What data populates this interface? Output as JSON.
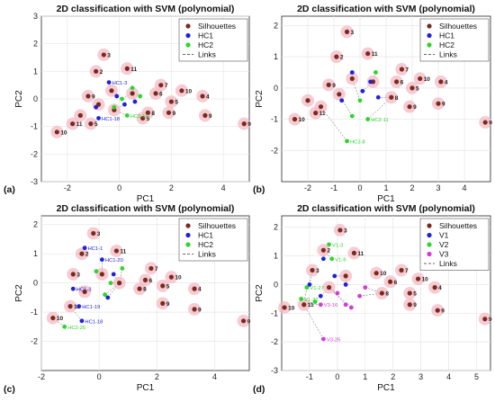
{
  "panel_labels": [
    "(a)",
    "(b)",
    "(c)",
    "(d)"
  ],
  "colors": {
    "silhouettes": "#7b2a1a",
    "halo": "#f3b9c4",
    "hc1": "#1f22d8",
    "hc2": "#2fd42f",
    "v1": "#2fd42f",
    "v2": "#1f22d8",
    "v3": "#d23bd6",
    "links": "#333333"
  },
  "chart_data": [
    {
      "type": "scatter",
      "title": "2D classification with SVM (polynomial)",
      "xlabel": "PC1",
      "ylabel": "PC2",
      "xlim": [
        -3,
        5
      ],
      "ylim": [
        -3,
        3
      ],
      "xticks": [
        -2,
        0,
        2,
        4
      ],
      "yticks": [
        -3,
        -2,
        -1,
        0,
        1,
        2,
        3
      ],
      "grid": true,
      "legend_position": "top-right",
      "legend": [
        "Silhouettes",
        "HC1",
        "HC2",
        "Links"
      ],
      "series": [
        {
          "name": "Silhouettes",
          "role": "sil",
          "points": [
            {
              "x": -0.6,
              "y": 1.6,
              "label": "3"
            },
            {
              "x": -0.9,
              "y": 1.0,
              "label": "2"
            },
            {
              "x": 0.3,
              "y": 1.1,
              "label": "11"
            },
            {
              "x": -2.4,
              "y": -1.2,
              "label": "10"
            },
            {
              "x": 4.8,
              "y": -0.9,
              "label": "9"
            },
            {
              "x": 3.3,
              "y": -0.6,
              "label": "9"
            },
            {
              "x": 3.2,
              "y": 0.1,
              "label": "4"
            },
            {
              "x": 1.6,
              "y": 0.5,
              "label": "7"
            },
            {
              "x": 2.4,
              "y": 0.3,
              "label": "10"
            },
            {
              "x": 2.0,
              "y": -0.1,
              "label": "5"
            },
            {
              "x": 1.9,
              "y": -0.5,
              "label": "9"
            },
            {
              "x": -1.8,
              "y": -0.9,
              "label": "11"
            },
            {
              "x": -1.1,
              "y": -0.9,
              "label": "5"
            },
            {
              "x": 1.1,
              "y": -0.5,
              "label": "8"
            },
            {
              "x": 0.9,
              "y": -0.7,
              "label": "5"
            },
            {
              "x": -1.2,
              "y": 0.1,
              "label": "9"
            },
            {
              "x": -0.8,
              "y": -0.2,
              "label": ""
            },
            {
              "x": -0.3,
              "y": 0.3,
              "label": ""
            },
            {
              "x": 1.4,
              "y": 0.2,
              "label": "6"
            },
            {
              "x": -1.5,
              "y": -0.6,
              "label": ""
            },
            {
              "x": 0.5,
              "y": 0.2,
              "label": ""
            },
            {
              "x": -0.2,
              "y": -0.4,
              "label": ""
            }
          ]
        },
        {
          "name": "HC1",
          "role": "a",
          "points": [
            {
              "x": -0.4,
              "y": 0.6,
              "label": "HC1-3"
            },
            {
              "x": -0.8,
              "y": -0.7,
              "label": "HC1-18"
            },
            {
              "x": 0.2,
              "y": -0.2,
              "label": ""
            },
            {
              "x": -0.1,
              "y": 0.1,
              "label": ""
            },
            {
              "x": 0.6,
              "y": -0.1,
              "label": ""
            },
            {
              "x": -0.9,
              "y": -0.3,
              "label": ""
            }
          ]
        },
        {
          "name": "HC2",
          "role": "b",
          "points": [
            {
              "x": 0.3,
              "y": -0.6,
              "label": "HC2-14"
            },
            {
              "x": 0.5,
              "y": 0.4,
              "label": ""
            },
            {
              "x": 0.1,
              "y": 0.0,
              "label": ""
            },
            {
              "x": 0.8,
              "y": 0.1,
              "label": ""
            },
            {
              "x": -0.2,
              "y": -0.3,
              "label": ""
            }
          ]
        }
      ]
    },
    {
      "type": "scatter",
      "title": "2D classification with SVM (polynomial)",
      "xlabel": "PC1",
      "ylabel": "PC2",
      "xlim": [
        -3,
        5
      ],
      "ylim": [
        -3,
        2.3
      ],
      "xticks": [
        -2,
        -1,
        0,
        1,
        2,
        3,
        4
      ],
      "yticks": [
        -2,
        -1,
        0,
        1,
        2
      ],
      "grid": true,
      "legend_position": "top-right",
      "legend": [
        "Silhouettes",
        "HC1",
        "HC2",
        "Links"
      ],
      "series": [
        {
          "name": "Silhouettes",
          "role": "sil",
          "points": [
            {
              "x": -0.5,
              "y": 1.8,
              "label": "3"
            },
            {
              "x": -0.9,
              "y": 1.0,
              "label": "2"
            },
            {
              "x": 0.3,
              "y": 1.1,
              "label": "11"
            },
            {
              "x": -2.5,
              "y": -1.0,
              "label": "10"
            },
            {
              "x": 4.8,
              "y": -1.1,
              "label": "9"
            },
            {
              "x": 3.0,
              "y": -0.5,
              "label": "9"
            },
            {
              "x": 3.1,
              "y": 0.2,
              "label": "4"
            },
            {
              "x": 1.6,
              "y": 0.6,
              "label": "7"
            },
            {
              "x": 2.3,
              "y": 0.3,
              "label": "10"
            },
            {
              "x": 2.0,
              "y": 0.0,
              "label": "5"
            },
            {
              "x": 1.9,
              "y": -0.6,
              "label": "9"
            },
            {
              "x": -1.7,
              "y": -0.8,
              "label": "11"
            },
            {
              "x": -1.2,
              "y": 0.1,
              "label": "9"
            },
            {
              "x": 1.2,
              "y": -0.3,
              "label": "8"
            },
            {
              "x": -0.8,
              "y": -0.2,
              "label": ""
            },
            {
              "x": -0.3,
              "y": 0.3,
              "label": ""
            },
            {
              "x": 1.4,
              "y": 0.2,
              "label": "6"
            },
            {
              "x": -1.5,
              "y": -0.6,
              "label": ""
            },
            {
              "x": 0.5,
              "y": 0.2,
              "label": ""
            },
            {
              "x": -2.0,
              "y": -0.4,
              "label": ""
            }
          ]
        },
        {
          "name": "HC1",
          "role": "a",
          "points": [
            {
              "x": -0.3,
              "y": 0.5,
              "label": ""
            },
            {
              "x": 0.1,
              "y": -0.1,
              "label": ""
            },
            {
              "x": 0.4,
              "y": 0.2,
              "label": ""
            },
            {
              "x": -0.7,
              "y": -0.4,
              "label": ""
            },
            {
              "x": 0.7,
              "y": -0.3,
              "label": ""
            }
          ]
        },
        {
          "name": "HC2",
          "role": "b",
          "points": [
            {
              "x": -0.5,
              "y": -1.7,
              "label": "HC2-8"
            },
            {
              "x": 0.3,
              "y": -1.0,
              "label": "HC2-11"
            },
            {
              "x": 0.6,
              "y": 0.5,
              "label": ""
            },
            {
              "x": 0.0,
              "y": -0.4,
              "label": ""
            },
            {
              "x": -0.3,
              "y": -0.9,
              "label": ""
            }
          ]
        }
      ]
    },
    {
      "type": "scatter",
      "title": "2D classification with SVM (polynomial)",
      "xlabel": "PC1",
      "ylabel": "PC2",
      "xlim": [
        -2,
        5.2
      ],
      "ylim": [
        -3,
        2.3
      ],
      "xticks": [
        -2,
        0,
        2,
        4
      ],
      "yticks": [
        -2,
        -1,
        0,
        1,
        2
      ],
      "grid": true,
      "legend_position": "top-right",
      "legend": [
        "Silhouettes",
        "HC1",
        "HC2",
        "Links"
      ],
      "series": [
        {
          "name": "Silhouettes",
          "role": "sil",
          "points": [
            {
              "x": -0.2,
              "y": 1.7,
              "label": "3"
            },
            {
              "x": -0.6,
              "y": 1.0,
              "label": "2"
            },
            {
              "x": 0.6,
              "y": 1.1,
              "label": "11"
            },
            {
              "x": -1.6,
              "y": -1.2,
              "label": "10"
            },
            {
              "x": 5.0,
              "y": -1.3,
              "label": "9"
            },
            {
              "x": 3.3,
              "y": -0.9,
              "label": "9"
            },
            {
              "x": 3.3,
              "y": -0.2,
              "label": "4"
            },
            {
              "x": 1.8,
              "y": 0.5,
              "label": "7"
            },
            {
              "x": 2.5,
              "y": 0.2,
              "label": "10"
            },
            {
              "x": 2.2,
              "y": -0.1,
              "label": "5"
            },
            {
              "x": 2.2,
              "y": -0.7,
              "label": "9"
            },
            {
              "x": -1.0,
              "y": -0.8,
              "label": "11"
            },
            {
              "x": -0.9,
              "y": 0.3,
              "label": "3"
            },
            {
              "x": 1.4,
              "y": -0.2,
              "label": "8"
            },
            {
              "x": -0.5,
              "y": -0.3,
              "label": ""
            },
            {
              "x": 0.1,
              "y": 0.3,
              "label": ""
            },
            {
              "x": 1.6,
              "y": 0.1,
              "label": "6"
            },
            {
              "x": 0.7,
              "y": 0.0,
              "label": ""
            }
          ]
        },
        {
          "name": "HC1",
          "role": "a",
          "points": [
            {
              "x": -0.5,
              "y": 1.2,
              "label": "HC1-1"
            },
            {
              "x": 0.1,
              "y": 0.8,
              "label": "HC1-20"
            },
            {
              "x": -0.6,
              "y": -1.3,
              "label": "HC1-18"
            },
            {
              "x": -0.9,
              "y": -0.2,
              "label": "HC1-3"
            },
            {
              "x": -0.7,
              "y": -0.8,
              "label": "HC1-19"
            },
            {
              "x": 0.3,
              "y": -0.5,
              "label": ""
            },
            {
              "x": 0.5,
              "y": 0.3,
              "label": ""
            }
          ]
        },
        {
          "name": "HC2",
          "role": "b",
          "points": [
            {
              "x": -1.2,
              "y": -1.5,
              "label": "HC2-25"
            },
            {
              "x": -0.1,
              "y": 0.4,
              "label": ""
            },
            {
              "x": 0.4,
              "y": 0.0,
              "label": ""
            },
            {
              "x": 0.8,
              "y": 0.5,
              "label": ""
            },
            {
              "x": 0.2,
              "y": -0.4,
              "label": ""
            }
          ]
        }
      ]
    },
    {
      "type": "scatter",
      "title": "2D classification with SVM (polynomial)",
      "xlabel": "PC1",
      "ylabel": "PC2",
      "xlim": [
        -2,
        5.5
      ],
      "ylim": [
        -3,
        2.4
      ],
      "xticks": [
        -1,
        0,
        1,
        2,
        3,
        4,
        5
      ],
      "yticks": [
        -3,
        -2,
        -1,
        0,
        1,
        2
      ],
      "grid": true,
      "legend_position": "top-right",
      "legend": [
        "Silhouettes",
        "V1",
        "V2",
        "V3",
        "Links"
      ],
      "series": [
        {
          "name": "Silhouettes",
          "role": "sil",
          "points": [
            {
              "x": 0.1,
              "y": 1.9,
              "label": "3"
            },
            {
              "x": -0.5,
              "y": 1.2,
              "label": "2"
            },
            {
              "x": 0.6,
              "y": 1.1,
              "label": "11"
            },
            {
              "x": -1.9,
              "y": -0.8,
              "label": "10"
            },
            {
              "x": 5.3,
              "y": -1.2,
              "label": "9"
            },
            {
              "x": 3.6,
              "y": -0.9,
              "label": "9"
            },
            {
              "x": 3.5,
              "y": -0.1,
              "label": "4"
            },
            {
              "x": 2.3,
              "y": 0.5,
              "label": "7"
            },
            {
              "x": 2.9,
              "y": 0.2,
              "label": "10"
            },
            {
              "x": 2.6,
              "y": -0.3,
              "label": "5"
            },
            {
              "x": 2.6,
              "y": -0.7,
              "label": "9"
            },
            {
              "x": -1.2,
              "y": -0.7,
              "label": "11"
            },
            {
              "x": -0.9,
              "y": 0.5,
              "label": "3"
            },
            {
              "x": 1.6,
              "y": -0.3,
              "label": "8"
            },
            {
              "x": 1.4,
              "y": 0.4,
              "label": "10"
            },
            {
              "x": -0.3,
              "y": -0.1,
              "label": ""
            },
            {
              "x": 0.3,
              "y": 0.3,
              "label": ""
            },
            {
              "x": 1.9,
              "y": 0.1,
              "label": "6"
            }
          ]
        },
        {
          "name": "V1",
          "role": "a",
          "points": [
            {
              "x": -0.5,
              "y": 0.9,
              "label": ""
            },
            {
              "x": -0.1,
              "y": 0.3,
              "label": ""
            },
            {
              "x": -1.0,
              "y": 0.0,
              "label": ""
            },
            {
              "x": 0.3,
              "y": 0.0,
              "label": ""
            },
            {
              "x": -0.6,
              "y": -0.4,
              "label": ""
            }
          ]
        },
        {
          "name": "V2",
          "role": "b",
          "points": [
            {
              "x": -0.3,
              "y": 1.4,
              "label": "V1-3"
            },
            {
              "x": -0.2,
              "y": 0.9,
              "label": "V1-8"
            },
            {
              "x": -1.1,
              "y": -0.1,
              "label": "V1-27"
            },
            {
              "x": -1.3,
              "y": -0.5,
              "label": "V1-22"
            },
            {
              "x": -0.8,
              "y": -0.6,
              "label": ""
            }
          ]
        },
        {
          "name": "V3",
          "role": "c",
          "points": [
            {
              "x": -0.6,
              "y": -0.7,
              "label": "V3-16"
            },
            {
              "x": -0.5,
              "y": -1.9,
              "label": "V3-25"
            },
            {
              "x": 0.3,
              "y": -0.7,
              "label": ""
            },
            {
              "x": 0.8,
              "y": -0.4,
              "label": ""
            },
            {
              "x": 0.5,
              "y": -0.8,
              "label": ""
            },
            {
              "x": 0.0,
              "y": -0.3,
              "label": ""
            },
            {
              "x": 1.0,
              "y": -0.1,
              "label": ""
            }
          ]
        }
      ]
    }
  ]
}
